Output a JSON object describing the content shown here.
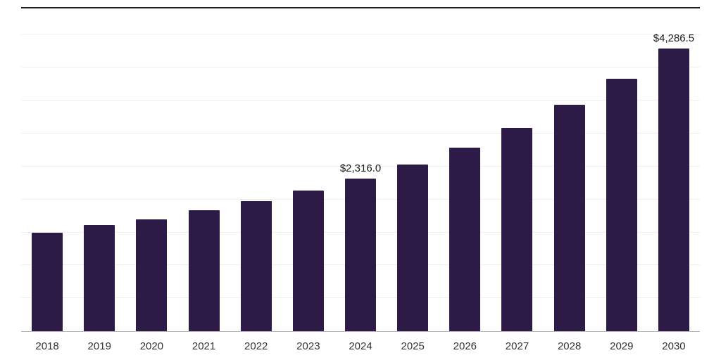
{
  "chart_data": {
    "type": "bar",
    "title": "",
    "xlabel": "",
    "ylabel": "",
    "categories": [
      "2018",
      "2019",
      "2020",
      "2021",
      "2022",
      "2023",
      "2024",
      "2025",
      "2026",
      "2027",
      "2028",
      "2029",
      "2030"
    ],
    "values": [
      1500,
      1610,
      1700,
      1840,
      1970,
      2140,
      2316.0,
      2530,
      2790,
      3090,
      3440,
      3830,
      4286.5
    ],
    "data_labels": [
      "",
      "",
      "",
      "",
      "",
      "",
      "$2,316.0",
      "",
      "",
      "",
      "",
      "",
      "$4,286.5"
    ],
    "ylim": [
      0,
      4900
    ],
    "gridline_step": 500,
    "grid": true,
    "legend": false,
    "colors": {
      "bar": "#2d1a47",
      "gridline": "#efefef",
      "top_border": "#1a1a1a",
      "baseline": "#b5b5b5",
      "tick_label": "#333333",
      "data_label": "#1a1a1a",
      "background": "#ffffff"
    }
  }
}
